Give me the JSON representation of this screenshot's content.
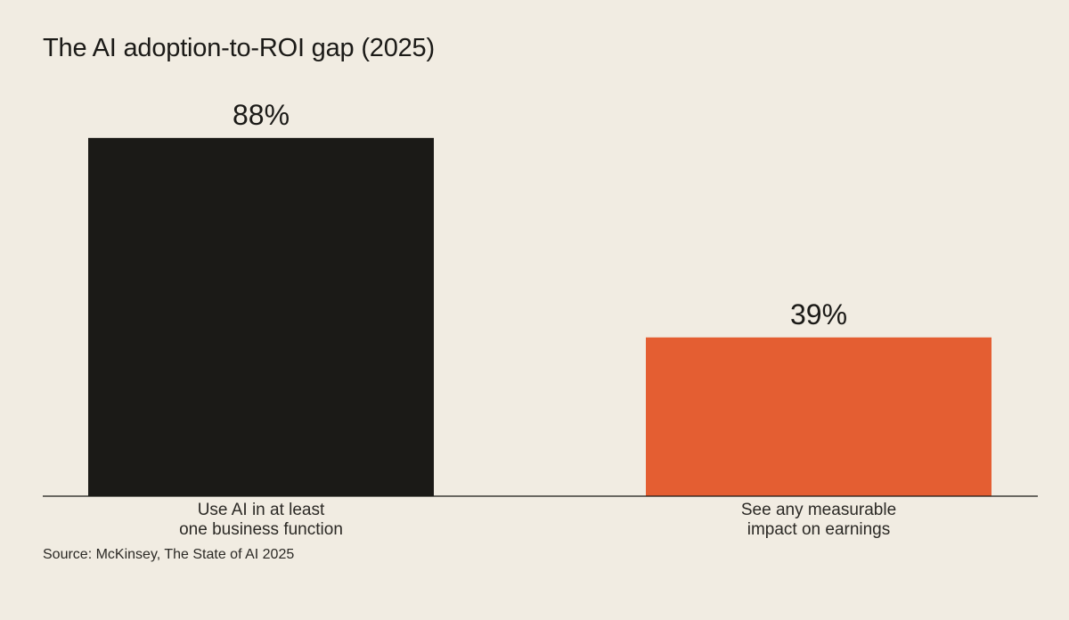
{
  "chart_data": {
    "type": "bar",
    "title": "The AI adoption-to-ROI gap (2025)",
    "categories": [
      [
        "Use AI in at least",
        "one business function"
      ],
      [
        "See any measurable",
        "impact on earnings"
      ]
    ],
    "values": [
      88,
      39
    ],
    "value_labels": [
      "88%",
      "39%"
    ],
    "colors": [
      "#1b1a17",
      "#e45e32"
    ],
    "xlabel": "",
    "ylabel": "",
    "ylim": [
      0,
      100
    ],
    "grid": false,
    "legend": "none"
  },
  "source": "Source: McKinsey, The State of AI 2025"
}
